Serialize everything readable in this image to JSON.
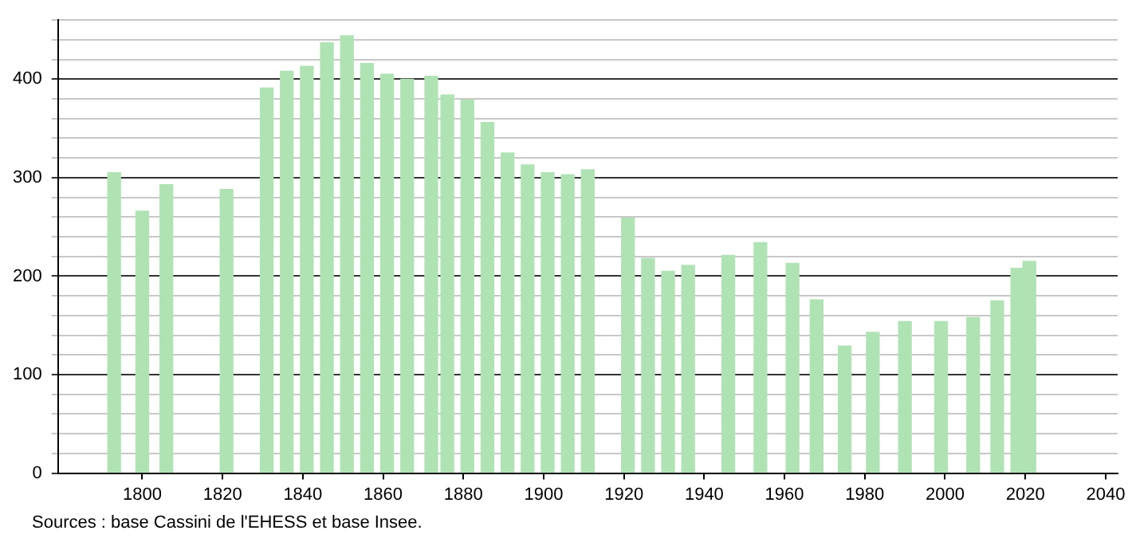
{
  "chart_data": {
    "type": "bar",
    "x": [
      1793,
      1800,
      1806,
      1821,
      1831,
      1836,
      1841,
      1846,
      1851,
      1856,
      1861,
      1866,
      1872,
      1876,
      1881,
      1886,
      1891,
      1896,
      1901,
      1906,
      1911,
      1921,
      1926,
      1931,
      1936,
      1946,
      1954,
      1962,
      1968,
      1975,
      1982,
      1990,
      1999,
      2007,
      2013,
      2018,
      2021
    ],
    "values": [
      305,
      266,
      293,
      288,
      391,
      408,
      413,
      437,
      444,
      416,
      405,
      400,
      403,
      384,
      379,
      356,
      325,
      313,
      305,
      303,
      308,
      259,
      218,
      205,
      211,
      221,
      234,
      213,
      176,
      129,
      143,
      154,
      154,
      158,
      175,
      208,
      215
    ],
    "color": "#b0e3b4",
    "xlim": [
      1779,
      2043
    ],
    "xticks": [
      1800,
      1820,
      1840,
      1860,
      1880,
      1900,
      1920,
      1940,
      1960,
      1980,
      2000,
      2020,
      2040
    ],
    "ylim": [
      0,
      460
    ],
    "yticks": [
      0,
      {
        "value": 20,
        "label": null
      },
      {
        "value": 40,
        "label": null
      },
      {
        "value": 60,
        "label": null
      },
      {
        "value": 80,
        "label": null
      },
      100,
      {
        "value": 120,
        "label": null
      },
      {
        "value": 140,
        "label": null
      },
      {
        "value": 160,
        "label": null
      },
      {
        "value": 180,
        "label": null
      },
      200,
      {
        "value": 220,
        "label": null
      },
      {
        "value": 240,
        "label": null
      },
      {
        "value": 260,
        "label": null
      },
      {
        "value": 280,
        "label": null
      },
      300,
      {
        "value": 320,
        "label": null
      },
      {
        "value": 340,
        "label": null
      },
      {
        "value": 360,
        "label": null
      },
      {
        "value": 380,
        "label": null
      },
      400,
      {
        "value": 420,
        "label": null
      },
      {
        "value": 440,
        "label": null
      },
      {
        "value": 460,
        "label": null
      }
    ],
    "grid": "y",
    "annotations": [
      "Sources : base Cassini de l'EHESS et base Insee."
    ]
  }
}
